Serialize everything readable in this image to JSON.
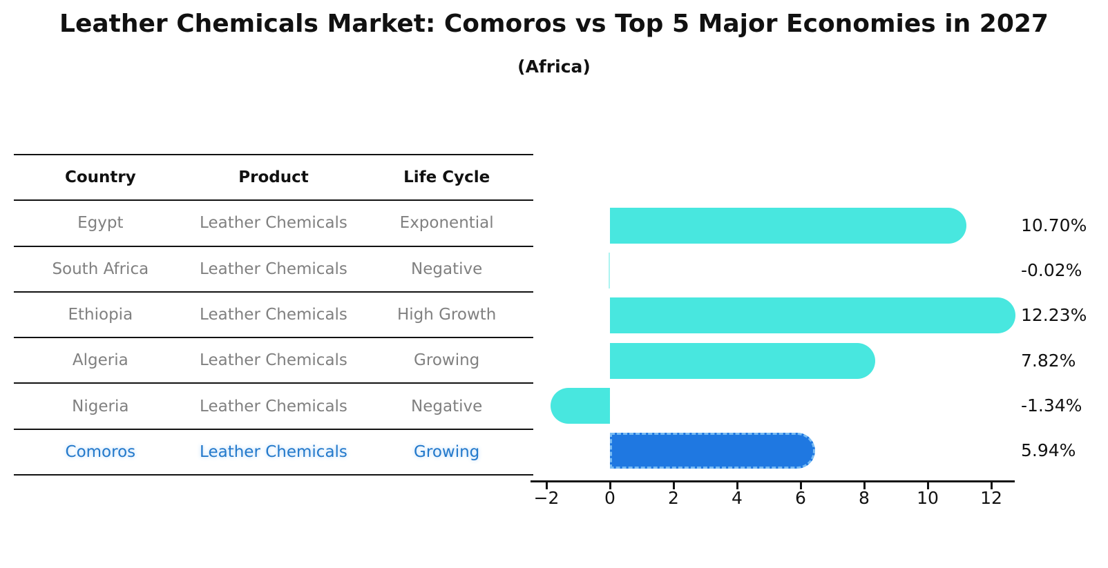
{
  "colors": {
    "bar_primary": "#48E7DF",
    "bar_highlight": "#1F78E1",
    "highlight_border": "#79BCF4",
    "highlight_text": "#2379CB",
    "table_text": "#808080",
    "axis": "#111111"
  },
  "table": {
    "headers": [
      "Country",
      "Product",
      "Life Cycle"
    ],
    "rows": [
      {
        "country": "Egypt",
        "product": "Leather Chemicals",
        "life_cycle": "Exponential",
        "highlight": false
      },
      {
        "country": "South Africa",
        "product": "Leather Chemicals",
        "life_cycle": "Negative",
        "highlight": false
      },
      {
        "country": "Ethiopia",
        "product": "Leather Chemicals",
        "life_cycle": "High Growth",
        "highlight": false
      },
      {
        "country": "Algeria",
        "product": "Leather Chemicals",
        "life_cycle": "Growing",
        "highlight": false
      },
      {
        "country": "Nigeria",
        "product": "Leather Chemicals",
        "life_cycle": "Negative",
        "highlight": false
      },
      {
        "country": "Comoros",
        "product": "Leather Chemicals",
        "life_cycle": "Growing",
        "highlight": true
      }
    ]
  },
  "chart_data": {
    "type": "bar",
    "orientation": "horizontal",
    "title": "Leather Chemicals Market: Comoros vs Top 5 Major Economies in 2027",
    "subtitle": "(Africa)",
    "categories": [
      "Egypt",
      "South Africa",
      "Ethiopia",
      "Algeria",
      "Nigeria",
      "Comoros"
    ],
    "values": [
      10.7,
      -0.02,
      12.23,
      7.82,
      -1.34,
      5.94
    ],
    "value_labels": [
      "10.70%",
      "-0.02%",
      "12.23%",
      "7.82%",
      "-1.34%",
      "5.94%"
    ],
    "x_ticks": [
      -2,
      0,
      2,
      4,
      6,
      8,
      10,
      12
    ],
    "x_tick_labels": [
      "−2",
      "0",
      "2",
      "4",
      "6",
      "8",
      "10",
      "12"
    ],
    "xlim": [
      -2.5,
      12.75
    ],
    "bar_colors": [
      "#48E7DF",
      "#48E7DF",
      "#48E7DF",
      "#48E7DF",
      "#48E7DF",
      "#1F78E1"
    ],
    "highlight_index": 5,
    "grid": false,
    "legend": false,
    "ylabel": "",
    "xlabel": ""
  }
}
